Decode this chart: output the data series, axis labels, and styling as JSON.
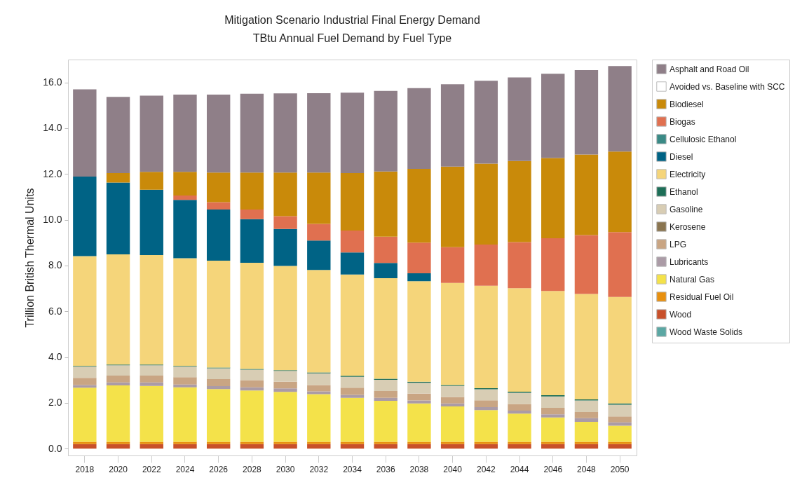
{
  "chart_data": {
    "type": "bar",
    "title": "Mitigation Scenario Industrial Final Energy Demand",
    "subtitle": "TBtu Annual Fuel Demand by Fuel Type",
    "ylabel": "Trillion British Thermal Units",
    "categories": [
      "2018",
      "2020",
      "2022",
      "2024",
      "2026",
      "2028",
      "2030",
      "2032",
      "2034",
      "2036",
      "2038",
      "2040",
      "2042",
      "2044",
      "2046",
      "2048",
      "2050"
    ],
    "stacked": true,
    "legend": "right",
    "ylim": [
      -0.3,
      17.0
    ],
    "yticks": [
      {
        "value": 0,
        "label": "0.0"
      },
      {
        "value": 2,
        "label": "2.0"
      },
      {
        "value": 4,
        "label": "4.0"
      },
      {
        "value": 6,
        "label": "6.0"
      },
      {
        "value": 8,
        "label": "8.0"
      },
      {
        "value": 10,
        "label": "10.0"
      },
      {
        "value": 12,
        "label": "12.0"
      },
      {
        "value": 14,
        "label": "14.0"
      },
      {
        "value": 16,
        "label": "16.0"
      }
    ],
    "series": [
      {
        "name": "Wood",
        "color": "#c8502a",
        "values": [
          0.2,
          0.2,
          0.2,
          0.2,
          0.2,
          0.2,
          0.2,
          0.2,
          0.2,
          0.2,
          0.2,
          0.2,
          0.2,
          0.2,
          0.2,
          0.2,
          0.2
        ]
      },
      {
        "name": "Residual Fuel Oil",
        "color": "#e8900f",
        "values": [
          0.1,
          0.1,
          0.1,
          0.1,
          0.1,
          0.1,
          0.1,
          0.1,
          0.1,
          0.1,
          0.1,
          0.1,
          0.1,
          0.1,
          0.1,
          0.1,
          0.1
        ]
      },
      {
        "name": "Natural Gas",
        "color": "#f4e24a",
        "values": [
          2.36,
          2.46,
          2.44,
          2.38,
          2.3,
          2.24,
          2.18,
          2.08,
          1.92,
          1.79,
          1.67,
          1.54,
          1.38,
          1.23,
          1.06,
          0.87,
          0.7
        ]
      },
      {
        "name": "Lubricants",
        "color": "#ab9ba6",
        "values": [
          0.12,
          0.13,
          0.15,
          0.12,
          0.13,
          0.14,
          0.15,
          0.12,
          0.13,
          0.13,
          0.13,
          0.13,
          0.13,
          0.13,
          0.14,
          0.16,
          0.15
        ]
      },
      {
        "name": "LPG",
        "color": "#c9a583",
        "values": [
          0.31,
          0.3,
          0.3,
          0.32,
          0.31,
          0.31,
          0.29,
          0.28,
          0.31,
          0.3,
          0.3,
          0.29,
          0.3,
          0.29,
          0.28,
          0.27,
          0.26
        ]
      },
      {
        "name": "Kerosene",
        "color": "#8a7550",
        "values": [
          null,
          null,
          null,
          null,
          null,
          null,
          null,
          null,
          null,
          null,
          null,
          null,
          null,
          null,
          null,
          null,
          null
        ]
      },
      {
        "name": "Gasoline",
        "color": "#d8cdb4",
        "values": [
          0.49,
          0.45,
          0.45,
          0.46,
          0.47,
          0.46,
          0.48,
          0.51,
          0.48,
          0.49,
          0.48,
          0.48,
          0.48,
          0.49,
          0.5,
          0.5,
          0.51
        ]
      },
      {
        "name": "Ethanol",
        "color": "#1d6e57",
        "values": [
          0.03,
          0.03,
          0.03,
          0.03,
          0.03,
          0.03,
          0.03,
          0.04,
          0.04,
          0.04,
          0.04,
          0.04,
          0.05,
          0.05,
          0.05,
          0.05,
          0.05
        ]
      },
      {
        "name": "Electricity",
        "color": "#f5d57a",
        "values": [
          4.8,
          4.82,
          4.79,
          4.71,
          4.67,
          4.64,
          4.55,
          4.48,
          4.43,
          4.4,
          4.4,
          4.46,
          4.48,
          4.52,
          4.56,
          4.61,
          4.66
        ]
      },
      {
        "name": "Diesel",
        "color": "#006385",
        "values": [
          3.48,
          3.14,
          2.85,
          2.55,
          2.24,
          1.91,
          1.62,
          1.28,
          0.96,
          0.66,
          0.34,
          0,
          0,
          0,
          0,
          0,
          0
        ]
      },
      {
        "name": "Cellulosic Ethanol",
        "color": "#3a8a86",
        "values": [
          null,
          null,
          null,
          null,
          null,
          null,
          null,
          null,
          null,
          null,
          null,
          null,
          null,
          null,
          null,
          null,
          null
        ]
      },
      {
        "name": "Biogas",
        "color": "#e07050",
        "values": [
          0,
          0,
          0,
          0.19,
          0.32,
          0.42,
          0.56,
          0.73,
          0.96,
          1.15,
          1.34,
          1.56,
          1.8,
          2.01,
          2.3,
          2.57,
          2.83
        ]
      },
      {
        "name": "Biodiesel",
        "color": "#c98a0a",
        "values": [
          0,
          0.41,
          0.78,
          1.03,
          1.29,
          1.61,
          1.9,
          2.24,
          2.51,
          2.85,
          3.22,
          3.52,
          3.53,
          3.55,
          3.51,
          3.52,
          3.52
        ]
      },
      {
        "name": "Asphalt and Road Oil",
        "color": "#8f7f88",
        "values": [
          3.81,
          3.33,
          3.33,
          3.38,
          3.41,
          3.45,
          3.46,
          3.47,
          3.51,
          3.52,
          3.53,
          3.6,
          3.62,
          3.65,
          3.68,
          3.69,
          3.74
        ]
      },
      {
        "name": "Wood Waste Solids",
        "color": "#5ba7a3",
        "values": [
          null,
          null,
          null,
          null,
          null,
          null,
          null,
          null,
          null,
          null,
          null,
          null,
          null,
          null,
          null,
          null,
          null
        ]
      },
      {
        "name": "Avoided vs. Baseline with SCC",
        "color": "#ffffff",
        "values": [
          null,
          null,
          null,
          null,
          null,
          null,
          null,
          null,
          null,
          null,
          null,
          null,
          null,
          null,
          null,
          null,
          null
        ]
      }
    ]
  }
}
